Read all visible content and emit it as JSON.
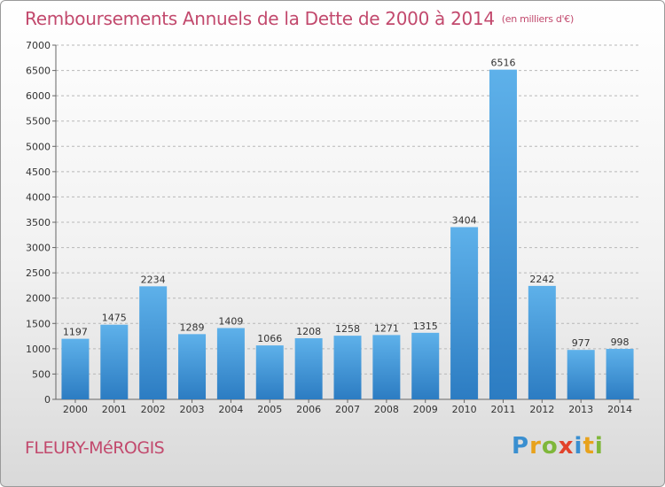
{
  "header": {
    "title": "Remboursements Annuels de la Dette de 2000 à 2014",
    "unit": "(en milliers d'€)"
  },
  "footer": {
    "city": "FLEURY-MéROGIS",
    "logo_letters": [
      "P",
      "r",
      "o",
      "x",
      "i",
      "t",
      "i"
    ],
    "logo_colors": [
      "#3a8fd0",
      "#e8a21c",
      "#7fb73a",
      "#e2432b",
      "#3a8fd0",
      "#e8a21c",
      "#7fb73a"
    ]
  },
  "colors": {
    "bar_top": "#5eb1ea",
    "bar_bottom": "#2c7cc2",
    "title": "#c2496d",
    "grid": "#b8b8b8"
  },
  "chart_data": {
    "type": "bar",
    "categories": [
      "2000",
      "2001",
      "2002",
      "2003",
      "2004",
      "2005",
      "2006",
      "2007",
      "2008",
      "2009",
      "2010",
      "2011",
      "2012",
      "2013",
      "2014"
    ],
    "values": [
      1197,
      1475,
      2234,
      1289,
      1409,
      1066,
      1208,
      1258,
      1271,
      1315,
      3404,
      6516,
      2242,
      977,
      998
    ],
    "yticks": [
      0,
      500,
      1000,
      1500,
      2000,
      2500,
      3000,
      3500,
      4000,
      4500,
      5000,
      5500,
      6000,
      6500,
      7000
    ],
    "ylim": [
      0,
      7000
    ],
    "grid": true,
    "xlabel": "",
    "ylabel": ""
  }
}
